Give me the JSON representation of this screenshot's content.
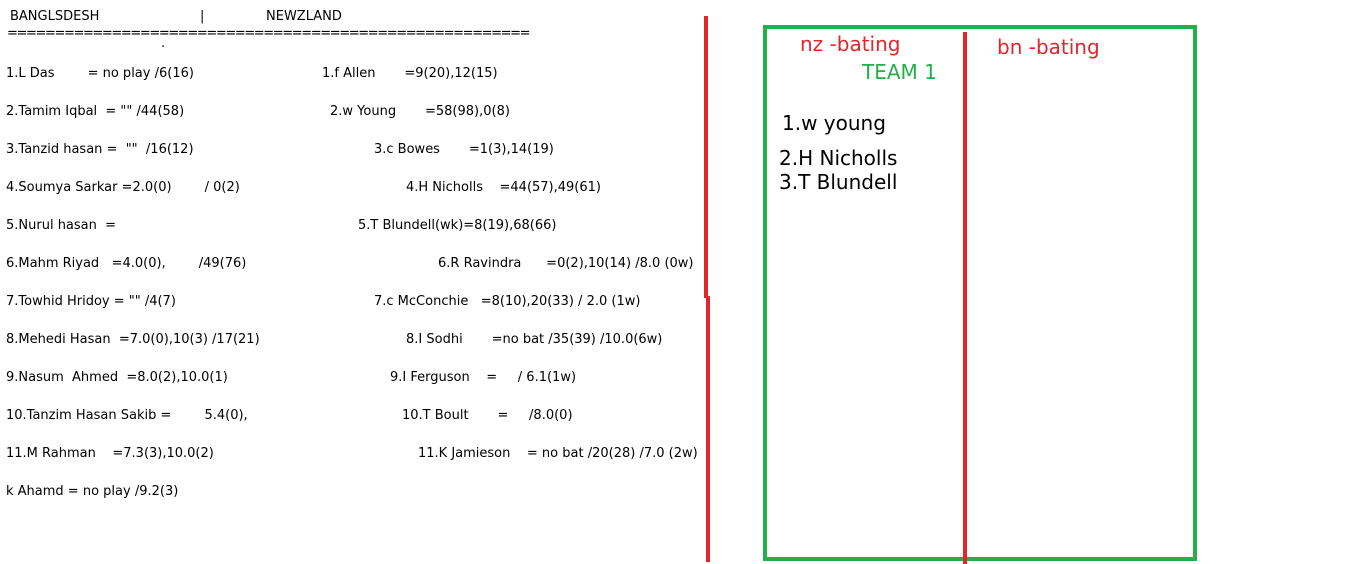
{
  "header": {
    "left_team": "BANGLSDESH",
    "divider": "|",
    "right_team": "NEWZLAND",
    "separator": "=======================================================",
    "dot": "."
  },
  "bangladesh": [
    "1.L Das        = no play /6(16)",
    "2.Tamim Iqbal  = \"\" /44(58)",
    "3.Tanzid hasan =  \"\"  /16(12)",
    "4.Soumya Sarkar =2.0(0)        / 0(2)",
    "5.Nurul hasan  =",
    "6.Mahm Riyad   =4.0(0),        /49(76)",
    "7.Towhid Hridoy = \"\" /4(7)",
    "8.Mehedi Hasan  =7.0(0),10(3) /17(21)",
    "9.Nasum  Ahmed  =8.0(2),10.0(1)",
    "10.Tanzim Hasan Sakib =        5.4(0),",
    "11.M Rahman    =7.3(3),10.0(2)",
    "k Ahamd = no play /9.2(3)"
  ],
  "newzealand": [
    "1.f Allen       =9(20),12(15)",
    "2.w Young       =58(98),0(8)",
    "3.c Bowes       =1(3),14(19)",
    "4.H Nicholls    =44(57),49(61)",
    "5.T Blundell(wk)=8(19),68(66)",
    "6.R Ravindra      =0(2),10(14) /8.0 (0w)",
    "7.c McConchie   =8(10),20(33) / 2.0 (1w)",
    "8.I Sodhi       =no bat /35(39) /10.0(6w)",
    "9.I Ferguson    =     / 6.1(1w)",
    "10.T Boult       =     /8.0(0)",
    "11.K Jamieson    = no bat /20(28) /7.0 (2w)"
  ],
  "panel": {
    "nz_label": "nz -bating",
    "bn_label": "bn -bating",
    "team_label": "TEAM 1",
    "players": [
      "1.w young",
      "2.H Nicholls",
      "3.T Blundell"
    ]
  },
  "colors": {
    "red": "#e2262b",
    "green": "#22b04b"
  }
}
